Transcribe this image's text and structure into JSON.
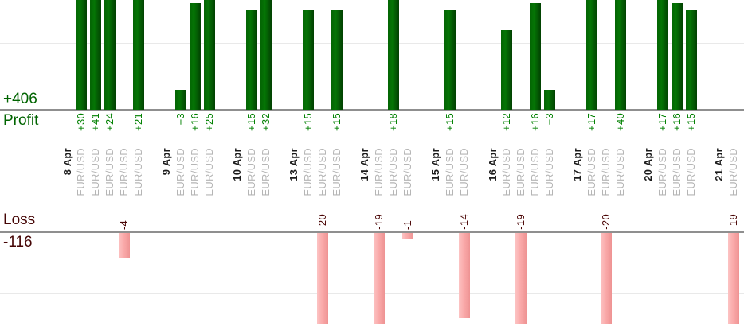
{
  "profit_panel": {
    "total_label": "+406",
    "name_label": "Profit",
    "text_color": "#006400",
    "bar_color": "#057505",
    "value_text_color": "#008000"
  },
  "loss_panel": {
    "total_label": "-116",
    "name_label": "Loss",
    "text_color": "#450505",
    "bar_color": "#faaaaa",
    "value_text_color": "#4a0505"
  },
  "chart_data": {
    "type": "bar",
    "title": "",
    "instrument": "EUR/USD",
    "groups": [
      {
        "date": "8 Apr",
        "trades": [
          30,
          41,
          24,
          -4,
          21
        ]
      },
      {
        "date": "9 Apr",
        "trades": [
          3,
          16,
          25
        ]
      },
      {
        "date": "10 Apr",
        "trades": [
          15,
          32
        ]
      },
      {
        "date": "13 Apr",
        "trades": [
          15,
          -20,
          15
        ]
      },
      {
        "date": "14 Apr",
        "trades": [
          -19,
          18,
          -1
        ]
      },
      {
        "date": "15 Apr",
        "trades": [
          15,
          -14
        ]
      },
      {
        "date": "16 Apr",
        "trades": [
          12,
          -19,
          16,
          3
        ]
      },
      {
        "date": "17 Apr",
        "trades": [
          17,
          -20,
          40
        ]
      },
      {
        "date": "20 Apr",
        "trades": [
          17,
          16,
          15
        ]
      },
      {
        "date": "21 Apr",
        "trades": [
          -19
        ]
      }
    ],
    "profit_total": 406,
    "loss_total": -116,
    "value_label_format": "signed",
    "profit_axis": {
      "visible_range": [
        0,
        16.5
      ],
      "gridline_value": 10,
      "bars_clipped_above": 16.5
    },
    "loss_axis": {
      "visible_range": [
        -15,
        0
      ],
      "gridline_value": -10,
      "bars_clipped_below": -15
    },
    "grid": "on",
    "legend": "none"
  }
}
